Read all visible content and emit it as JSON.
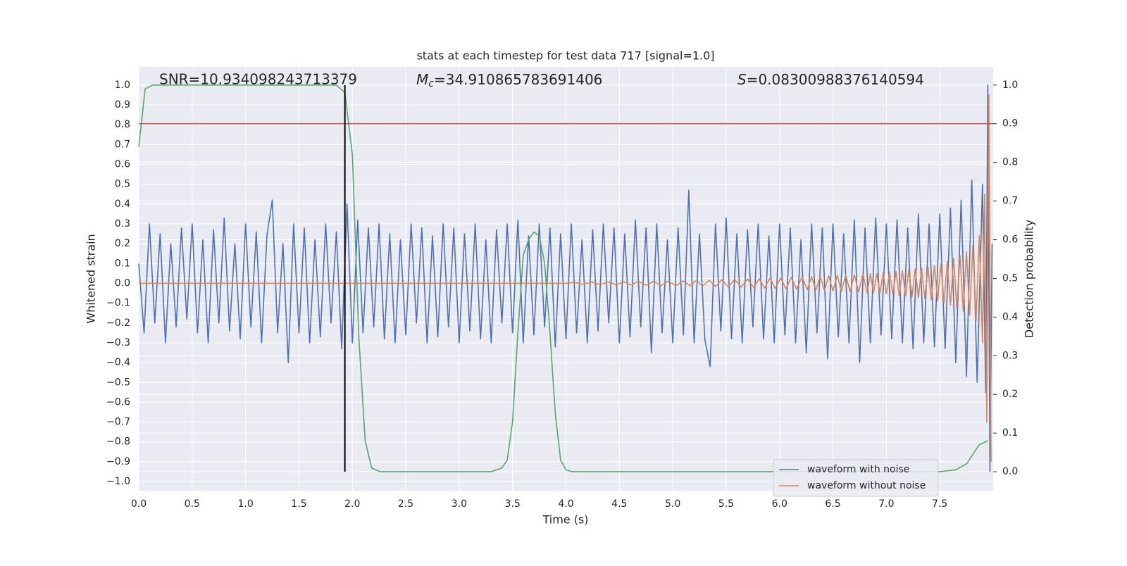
{
  "chart_data": {
    "type": "line",
    "title": "stats at each timestep for test data 717 [signal=1.0]",
    "xlabel": "Time (s)",
    "ylabel": "Whitened strain",
    "y2label": "Detection probability",
    "snr_text": "SNR=10.934098243713379",
    "mc_text": [
      "M",
      "c",
      "=34.910865783691406"
    ],
    "s_text": [
      "S",
      "=0.08300988376140594"
    ],
    "threshold": 0.9,
    "threshold_color": "#c44e52",
    "marker_time": 1.93,
    "marker_color": "#000000",
    "grid": true,
    "legend": "lower right",
    "xlim": [
      0,
      8.0
    ],
    "ylim": [
      -1.046,
      1.092
    ],
    "y2lim": [
      -0.049,
      1.047
    ],
    "xticks": [
      {
        "value": 0,
        "label": "0.0"
      },
      0.5,
      {
        "value": 1,
        "label": "1.0"
      },
      1.5,
      {
        "value": 2,
        "label": "2.0"
      },
      2.5,
      {
        "value": 3,
        "label": "3.0"
      },
      3.5,
      {
        "value": 4,
        "label": "4.0"
      },
      4.5,
      {
        "value": 5,
        "label": "5.0"
      },
      5.5,
      {
        "value": 6,
        "label": "6.0"
      },
      6.5,
      {
        "value": 7,
        "label": "7.0"
      },
      7.5
    ],
    "yticks": [
      {
        "value": -1,
        "label": "−1.0"
      },
      {
        "value": -0.9,
        "label": "−0.9"
      },
      {
        "value": -0.8,
        "label": "−0.8"
      },
      {
        "value": -0.7,
        "label": "−0.7"
      },
      {
        "value": -0.6,
        "label": "−0.6"
      },
      {
        "value": -0.5,
        "label": "−0.5"
      },
      {
        "value": -0.4,
        "label": "−0.4"
      },
      {
        "value": -0.3,
        "label": "−0.3"
      },
      {
        "value": -0.2,
        "label": "−0.2"
      },
      {
        "value": -0.1,
        "label": "−0.1"
      },
      {
        "value": 0,
        "label": "0.0"
      },
      0.1,
      0.2,
      0.3,
      0.4,
      0.5,
      0.6,
      0.7,
      0.8,
      0.9,
      {
        "value": 1,
        "label": "1.0"
      }
    ],
    "y2ticks": [
      {
        "value": 0,
        "label": "0.0"
      },
      0.1,
      0.2,
      0.3,
      0.4,
      0.5,
      0.6,
      0.7,
      0.8,
      0.9,
      {
        "value": 1,
        "label": "1.0"
      }
    ],
    "series": [
      {
        "name": "waveform with noise",
        "color": "#4c72b0",
        "x": [
          0,
          0.05,
          0.1,
          0.15,
          0.2,
          0.25,
          0.3,
          0.35,
          0.4,
          0.45,
          0.5,
          0.55,
          0.6,
          0.65,
          0.7,
          0.75,
          0.8,
          0.85,
          0.9,
          0.95,
          1,
          1.05,
          1.1,
          1.15,
          1.2,
          1.25,
          1.3,
          1.35,
          1.4,
          1.45,
          1.5,
          1.55,
          1.6,
          1.65,
          1.7,
          1.75,
          1.8,
          1.85,
          1.9,
          1.95,
          2,
          2.05,
          2.1,
          2.15,
          2.2,
          2.25,
          2.3,
          2.35,
          2.4,
          2.45,
          2.5,
          2.55,
          2.6,
          2.65,
          2.7,
          2.75,
          2.8,
          2.85,
          2.9,
          2.95,
          3,
          3.05,
          3.1,
          3.15,
          3.2,
          3.25,
          3.3,
          3.35,
          3.4,
          3.45,
          3.5,
          3.55,
          3.6,
          3.65,
          3.7,
          3.75,
          3.8,
          3.85,
          3.9,
          3.95,
          4,
          4.05,
          4.1,
          4.15,
          4.2,
          4.25,
          4.3,
          4.35,
          4.4,
          4.45,
          4.5,
          4.55,
          4.6,
          4.65,
          4.7,
          4.75,
          4.8,
          4.85,
          4.9,
          4.95,
          5,
          5.05,
          5.1,
          5.15,
          5.2,
          5.25,
          5.3,
          5.35,
          5.4,
          5.45,
          5.5,
          5.55,
          5.6,
          5.65,
          5.7,
          5.75,
          5.8,
          5.85,
          5.9,
          5.95,
          6,
          6.05,
          6.1,
          6.15,
          6.2,
          6.25,
          6.3,
          6.35,
          6.4,
          6.45,
          6.5,
          6.55,
          6.6,
          6.65,
          6.7,
          6.75,
          6.8,
          6.85,
          6.9,
          6.95,
          7,
          7.05,
          7.1,
          7.15,
          7.2,
          7.25,
          7.3,
          7.35,
          7.4,
          7.45,
          7.5,
          7.55,
          7.6,
          7.65,
          7.7,
          7.75,
          7.8,
          7.85,
          7.9,
          7.93,
          7.95,
          7.97,
          7.99
        ],
        "values": [
          0.1,
          -0.25,
          0.3,
          -0.2,
          0.25,
          -0.3,
          0.2,
          -0.22,
          0.28,
          -0.18,
          0.3,
          -0.25,
          0.22,
          -0.3,
          0.27,
          -0.2,
          0.33,
          -0.24,
          0.2,
          -0.28,
          0.3,
          -0.22,
          0.26,
          -0.3,
          0.24,
          0.42,
          -0.25,
          0.2,
          -0.4,
          0.3,
          -0.25,
          0.28,
          -0.3,
          0.22,
          -0.27,
          0.3,
          -0.2,
          0.26,
          -0.33,
          0.4,
          -0.3,
          0.32,
          -0.25,
          0.28,
          -0.22,
          0.3,
          -0.28,
          0.25,
          -0.3,
          0.22,
          -0.26,
          0.3,
          -0.2,
          0.28,
          -0.3,
          0.24,
          -0.27,
          0.3,
          -0.22,
          0.28,
          -0.3,
          0.25,
          -0.24,
          0.3,
          -0.28,
          0.22,
          -0.3,
          0.27,
          -0.2,
          0.3,
          -0.25,
          0.32,
          -0.3,
          0.24,
          -0.26,
          0.3,
          -0.22,
          0.28,
          -0.32,
          0.25,
          -0.28,
          0.3,
          -0.25,
          0.22,
          -0.3,
          0.27,
          -0.24,
          0.3,
          -0.2,
          0.28,
          -0.3,
          0.25,
          -0.27,
          0.32,
          -0.22,
          0.28,
          -0.35,
          0.3,
          -0.25,
          0.22,
          -0.3,
          0.28,
          -0.26,
          0.47,
          -0.3,
          0.25,
          -0.28,
          -0.42,
          0.3,
          -0.24,
          0.33,
          -0.28,
          0.25,
          -0.3,
          0.27,
          -0.22,
          0.3,
          -0.28,
          0.24,
          -0.3,
          0.3,
          -0.26,
          0.28,
          -0.3,
          0.22,
          -0.35,
          0.3,
          -0.25,
          0.28,
          -0.38,
          0.3,
          -0.27,
          0.25,
          -0.3,
          0.32,
          -0.4,
          0.28,
          -0.3,
          0.33,
          -0.26,
          0.3,
          -0.28,
          0.32,
          -0.3,
          0.28,
          -0.33,
          0.35,
          -0.3,
          0.3,
          -0.32,
          0.35,
          -0.33,
          0.38,
          -0.4,
          0.42,
          -0.47,
          0.52,
          -0.5,
          0.5,
          -0.55,
          1.0,
          -0.95,
          0.2
        ]
      },
      {
        "name": "waveform without noise",
        "color": "#dd8452",
        "x": [
          0,
          4.0,
          4.08,
          4.16,
          4.24,
          4.32,
          4.4,
          4.47,
          4.54,
          4.61,
          4.68,
          4.75,
          4.82,
          4.89,
          4.96,
          5.03,
          5.1,
          5.16,
          5.22,
          5.28,
          5.34,
          5.4,
          5.46,
          5.52,
          5.58,
          5.64,
          5.7,
          5.76,
          5.81,
          5.86,
          5.91,
          5.96,
          6.01,
          6.06,
          6.11,
          6.16,
          6.21,
          6.26,
          6.3,
          6.34,
          6.38,
          6.42,
          6.46,
          6.5,
          6.54,
          6.58,
          6.62,
          6.66,
          6.7,
          6.74,
          6.78,
          6.82,
          6.85,
          6.88,
          6.91,
          6.94,
          6.97,
          7.0,
          7.03,
          7.06,
          7.09,
          7.12,
          7.15,
          7.18,
          7.21,
          7.24,
          7.27,
          7.3,
          7.33,
          7.36,
          7.39,
          7.42,
          7.45,
          7.48,
          7.51,
          7.54,
          7.57,
          7.6,
          7.63,
          7.66,
          7.69,
          7.72,
          7.75,
          7.78,
          7.81,
          7.84,
          7.87,
          7.9,
          7.92,
          7.94,
          7.96,
          7.98
        ],
        "values": [
          0,
          0,
          0.005,
          -0.005,
          0.006,
          -0.006,
          0.007,
          -0.007,
          0.008,
          -0.008,
          0.009,
          -0.009,
          0.01,
          -0.01,
          0.011,
          -0.011,
          0.012,
          -0.012,
          0.014,
          -0.014,
          0.016,
          -0.016,
          0.018,
          -0.018,
          0.02,
          -0.02,
          0.022,
          -0.022,
          0.024,
          -0.024,
          0.026,
          -0.026,
          0.028,
          -0.028,
          0.03,
          -0.03,
          0.032,
          -0.032,
          0.034,
          -0.034,
          0.036,
          -0.036,
          0.038,
          -0.038,
          0.04,
          -0.04,
          0.042,
          -0.042,
          0.044,
          -0.044,
          0.046,
          -0.046,
          0.048,
          -0.048,
          0.05,
          -0.05,
          0.053,
          -0.053,
          0.056,
          -0.056,
          0.06,
          -0.06,
          0.064,
          -0.064,
          0.068,
          -0.068,
          0.072,
          -0.072,
          0.077,
          -0.077,
          0.083,
          -0.083,
          0.09,
          -0.09,
          0.1,
          -0.1,
          0.11,
          -0.11,
          0.125,
          -0.125,
          0.14,
          -0.14,
          0.16,
          -0.16,
          0.19,
          -0.19,
          0.24,
          -0.3,
          0.45,
          -0.7,
          0.95,
          -0.9
        ]
      },
      {
        "name": "detection probability",
        "color": "#55a868",
        "axis": "y2",
        "legend": false,
        "x": [
          0,
          0.06,
          0.13,
          0.5,
          1.0,
          1.5,
          1.85,
          1.93,
          2.0,
          2.06,
          2.12,
          2.18,
          2.26,
          2.5,
          3.0,
          3.3,
          3.4,
          3.45,
          3.5,
          3.55,
          3.6,
          3.65,
          3.7,
          3.75,
          3.8,
          3.85,
          3.9,
          3.95,
          4.0,
          4.06,
          5.0,
          6.0,
          7.0,
          7.5,
          7.65,
          7.75,
          7.87,
          7.95
        ],
        "values": [
          0.84,
          0.99,
          1.0,
          1.0,
          1.0,
          1.0,
          1.0,
          0.98,
          0.82,
          0.35,
          0.08,
          0.01,
          0.0,
          0.0,
          0.0,
          0.0,
          0.01,
          0.03,
          0.13,
          0.36,
          0.56,
          0.6,
          0.62,
          0.61,
          0.54,
          0.36,
          0.15,
          0.03,
          0.005,
          0.0,
          0.0,
          0.0,
          0.0,
          0.0,
          0.005,
          0.02,
          0.07,
          0.08
        ]
      }
    ]
  }
}
